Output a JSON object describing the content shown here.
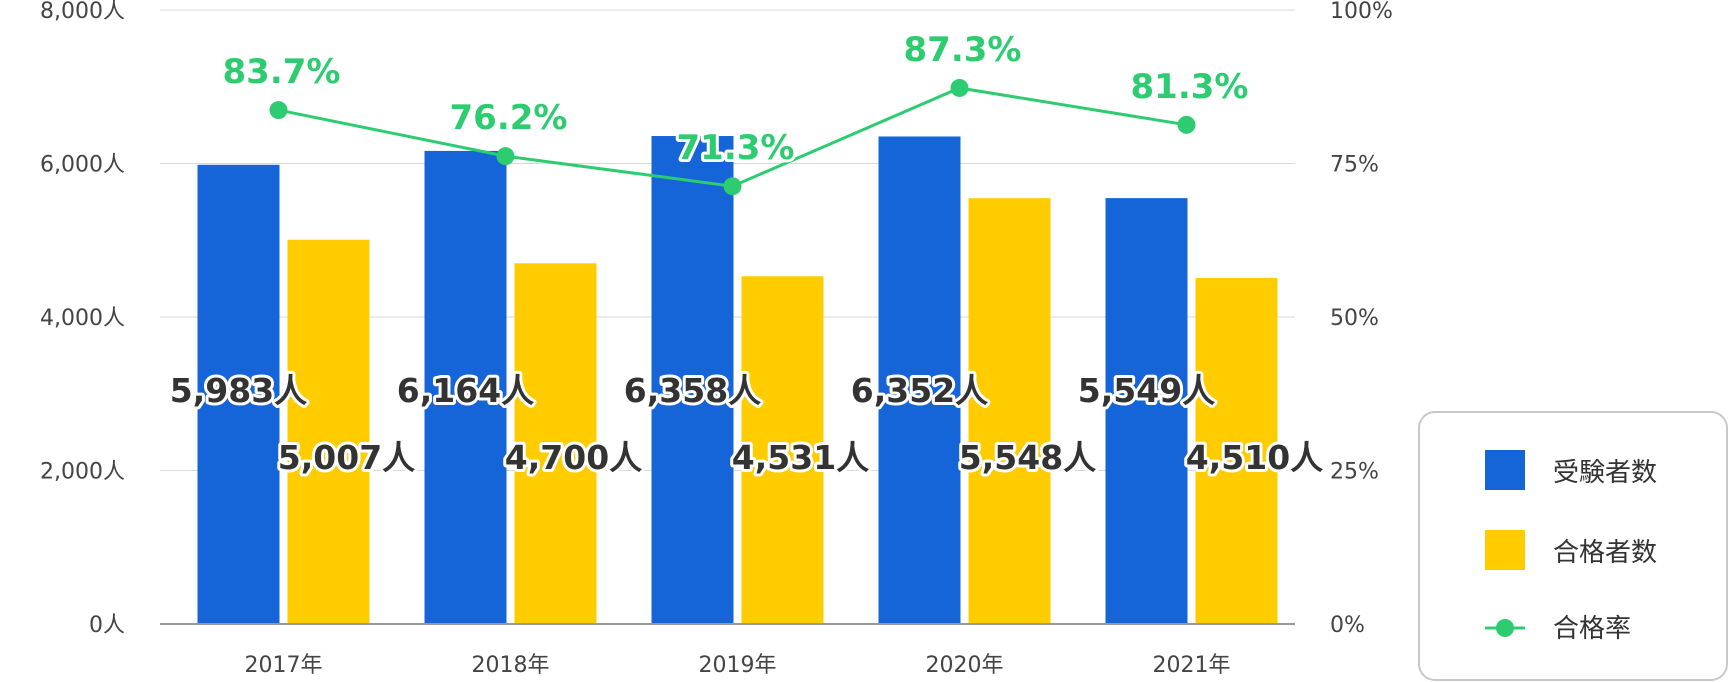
{
  "chart_data": {
    "type": "bar",
    "categories": [
      "2017年",
      "2018年",
      "2019年",
      "2020年",
      "2021年"
    ],
    "series": [
      {
        "name": "受験者数",
        "type": "bar",
        "axis": "left",
        "values": [
          5983,
          6164,
          6358,
          6352,
          5549
        ],
        "labels": [
          "5,983人",
          "6,164人",
          "6,358人",
          "6,352人",
          "5,549人"
        ],
        "color": "#1565d8"
      },
      {
        "name": "合格者数",
        "type": "bar",
        "axis": "left",
        "values": [
          5007,
          4700,
          4531,
          5548,
          4510
        ],
        "labels": [
          "5,007人",
          "4,700人",
          "4,531人",
          "5,548人",
          "4,510人"
        ],
        "color": "#ffcc00"
      },
      {
        "name": "合格率",
        "type": "line",
        "axis": "right",
        "values": [
          83.7,
          76.2,
          71.3,
          87.3,
          81.3
        ],
        "labels": [
          "83.7%",
          "76.2%",
          "71.3%",
          "87.3%",
          "81.3%"
        ],
        "color": "#2ecc71"
      }
    ],
    "y_left": {
      "ylim": [
        0,
        8000
      ],
      "ticks": [
        0,
        2000,
        4000,
        6000,
        8000
      ],
      "tick_labels": [
        "0人",
        "2,000人",
        "4,000人",
        "6,000人",
        "8,000人"
      ]
    },
    "y_right": {
      "ylim": [
        0,
        100
      ],
      "ticks": [
        0,
        25,
        50,
        75,
        100
      ],
      "tick_labels": [
        "0%",
        "25%",
        "50%",
        "75%",
        "100%"
      ]
    },
    "grid": true,
    "legend": "right"
  }
}
